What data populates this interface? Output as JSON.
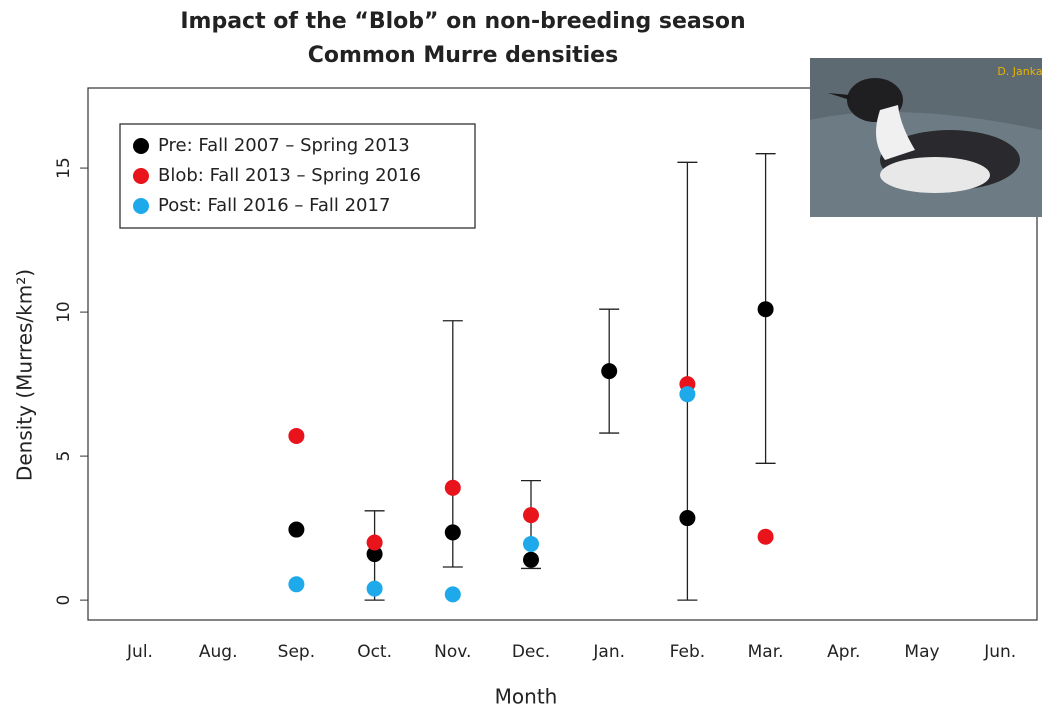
{
  "chart_data": {
    "type": "scatter",
    "title": [
      "Impact of the “Blob” on non-breeding season",
      "Common Murre densities"
    ],
    "x_label": "Month",
    "y_label": "Density (Murres/km²)",
    "photo_credit": "D. Janka",
    "categories": [
      "Jul.",
      "Aug.",
      "Sep.",
      "Oct.",
      "Nov.",
      "Dec.",
      "Jan.",
      "Feb.",
      "Mar.",
      "Apr.",
      "May",
      "Jun."
    ],
    "ylim": [
      -0.69,
      17.78
    ],
    "yticks": [
      0,
      5,
      10,
      15
    ],
    "series": [
      {
        "name": "Pre: Fall 2007 – Spring 2013",
        "color": "#000000",
        "values": [
          null,
          null,
          2.45,
          1.6,
          2.35,
          1.4,
          7.95,
          2.85,
          10.1,
          null,
          null,
          null
        ],
        "lower": [
          null,
          null,
          null,
          0,
          1.15,
          1.1,
          5.8,
          0,
          4.75,
          null,
          null,
          null
        ],
        "upper": [
          null,
          null,
          null,
          3.1,
          9.7,
          4.15,
          10.1,
          15.2,
          15.5,
          null,
          null,
          null
        ]
      },
      {
        "name": "Blob: Fall 2013 – Spring 2016",
        "color": "#e8131b",
        "values": [
          null,
          null,
          5.7,
          2.0,
          3.9,
          2.95,
          null,
          7.5,
          2.2,
          null,
          null,
          null
        ]
      },
      {
        "name": "Post: Fall 2016 – Fall 2017",
        "color": "#1eaaea",
        "values": [
          null,
          null,
          0.55,
          0.4,
          0.2,
          1.95,
          null,
          7.15,
          null,
          null,
          null,
          null
        ]
      }
    ]
  }
}
